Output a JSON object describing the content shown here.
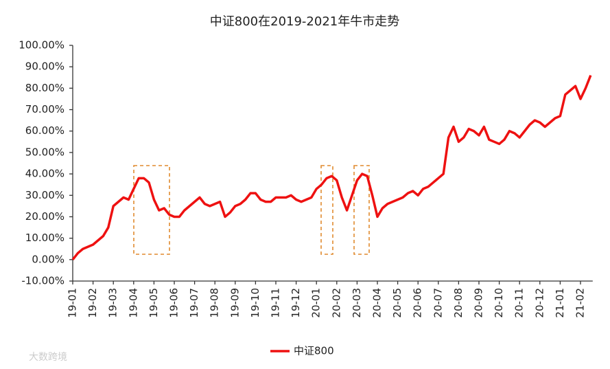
{
  "chart_data": {
    "type": "line",
    "title": "中证800在2019-2021年牛市走势",
    "watermark": "大数跨境",
    "categories": [
      "19-01",
      null,
      null,
      null,
      "19-02",
      null,
      null,
      null,
      "19-03",
      null,
      null,
      null,
      "19-04",
      null,
      null,
      null,
      "19-05",
      null,
      null,
      null,
      "19-06",
      null,
      null,
      null,
      "19-07",
      null,
      null,
      null,
      "19-08",
      null,
      null,
      null,
      "19-09",
      null,
      null,
      null,
      "19-10",
      null,
      null,
      null,
      "19-11",
      null,
      null,
      null,
      "19-12",
      null,
      null,
      null,
      "20-01",
      null,
      null,
      null,
      "20-02",
      null,
      null,
      null,
      "20-03",
      null,
      null,
      null,
      "20-04",
      null,
      null,
      null,
      "20-05",
      null,
      null,
      null,
      "20-06",
      null,
      null,
      null,
      "20-07",
      null,
      null,
      null,
      "20-08",
      null,
      null,
      null,
      "20-09",
      null,
      null,
      null,
      "20-10",
      null,
      null,
      null,
      "20-11",
      null,
      null,
      null,
      "20-12",
      null,
      null,
      null,
      "21-01",
      null,
      null,
      null,
      "21-02",
      null,
      null
    ],
    "series": [
      {
        "name": "中证800",
        "color": "#ee1111",
        "values": [
          0,
          3,
          5,
          6,
          7,
          9,
          11,
          15,
          25,
          27,
          29,
          28,
          33,
          38,
          38,
          36,
          28,
          23,
          24,
          21,
          20,
          20,
          23,
          25,
          27,
          29,
          26,
          25,
          26,
          27,
          20,
          22,
          25,
          26,
          28,
          31,
          31,
          28,
          27,
          27,
          29,
          29,
          29,
          30,
          28,
          27,
          28,
          29,
          33,
          35,
          38,
          39,
          37,
          29,
          23,
          30,
          37,
          40,
          39,
          30,
          20,
          24,
          26,
          27,
          28,
          29,
          31,
          32,
          30,
          33,
          34,
          36,
          38,
          40,
          57,
          62,
          55,
          57,
          61,
          60,
          58,
          62,
          56,
          55,
          54,
          56,
          60,
          59,
          57,
          60,
          63,
          65,
          64,
          62,
          64,
          66,
          67,
          77,
          79,
          81,
          75,
          80,
          86
        ]
      }
    ],
    "ylim": [
      -10,
      100
    ],
    "yticks": [
      {
        "value": -10,
        "label": "-10.00%"
      },
      {
        "value": 0,
        "label": "0.00%"
      },
      {
        "value": 10,
        "label": "10.00%"
      },
      {
        "value": 20,
        "label": "20.00%"
      },
      {
        "value": 30,
        "label": "30.00%"
      },
      {
        "value": 40,
        "label": "40.00%"
      },
      {
        "value": 50,
        "label": "50.00%"
      },
      {
        "value": 60,
        "label": "60.00%"
      },
      {
        "value": 70,
        "label": "70.00%"
      },
      {
        "value": 80,
        "label": "80.00%"
      },
      {
        "value": 90,
        "label": "90.00%"
      },
      {
        "value": 100,
        "label": "100.00%"
      }
    ],
    "grid": false
  }
}
